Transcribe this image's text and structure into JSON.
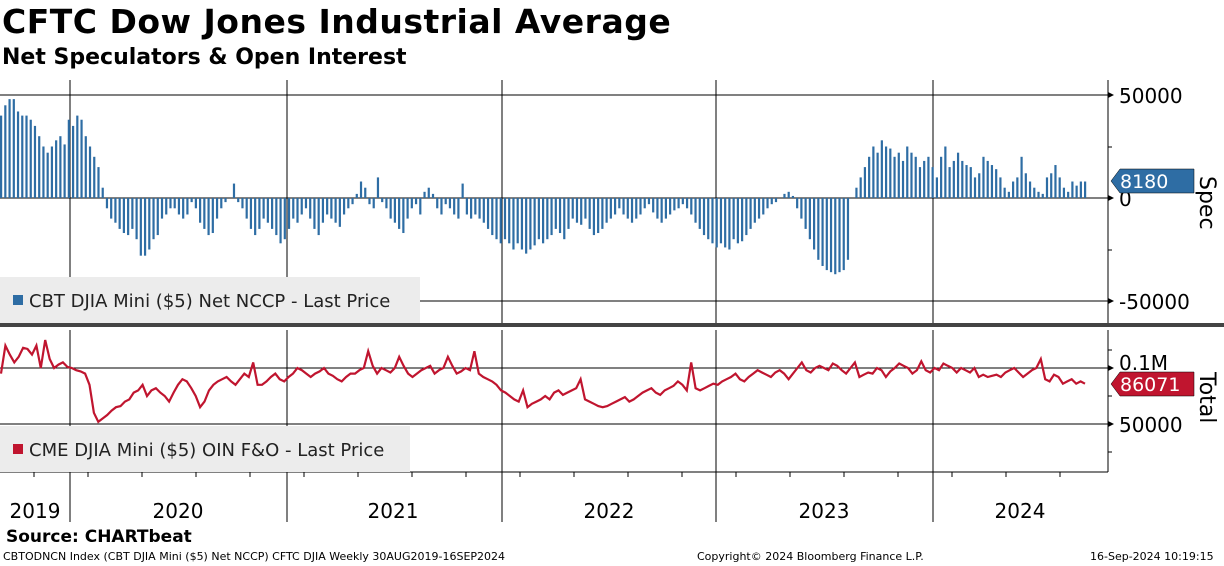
{
  "header": {
    "title": "CFTC Dow Jones Industrial Average",
    "subtitle": "Net Speculators & Open Interest"
  },
  "footer": {
    "source": "Source: CHARTbeat",
    "index": "CBTODNCN Index (CBT DJIA Mini ($5) Net NCCP) CFTC DJIA  Weekly 30AUG2019-16SEP2024",
    "copyright": "Copyright© 2024 Bloomberg Finance L.P.",
    "timestamp": "16-Sep-2024 10:19:15"
  },
  "colors": {
    "spec": "#2e6da4",
    "total": "#c0152f"
  },
  "chart_data": [
    {
      "type": "bar",
      "title": "Spec",
      "legend": "CBT DJIA Mini ($5) Net NCCP - Last Price",
      "ylim": [
        -60000,
        55000
      ],
      "yticks": [
        "50000",
        "0",
        "-50000"
      ],
      "last_value": "8180",
      "x_start": "2019-08-30",
      "x_end": "2024-09-16",
      "frequency": "weekly",
      "unit": "thousands",
      "values": [
        40,
        45,
        48,
        48,
        42,
        40,
        40,
        38,
        35,
        30,
        25,
        22,
        25,
        28,
        30,
        26,
        38,
        35,
        40,
        38,
        30,
        25,
        20,
        15,
        5,
        -5,
        -10,
        -12,
        -15,
        -17,
        -18,
        -15,
        -20,
        -28,
        -28,
        -25,
        -20,
        -18,
        -10,
        -8,
        -5,
        -5,
        -8,
        -10,
        -8,
        -2,
        -5,
        -12,
        -15,
        -18,
        -17,
        -10,
        -5,
        -2,
        0,
        7,
        -2,
        -5,
        -10,
        -15,
        -18,
        -15,
        -10,
        -12,
        -15,
        -18,
        -22,
        -20,
        -15,
        -10,
        -12,
        -8,
        -5,
        -10,
        -15,
        -18,
        -12,
        -8,
        -10,
        -12,
        -14,
        -8,
        -5,
        -3,
        2,
        8,
        5,
        -3,
        -5,
        10,
        -2,
        -5,
        -10,
        -12,
        -15,
        -17,
        -10,
        -5,
        -3,
        -8,
        3,
        5,
        2,
        -5,
        -8,
        -3,
        -5,
        -8,
        -10,
        7,
        -8,
        -10,
        -8,
        -10,
        -12,
        -15,
        -18,
        -20,
        -22,
        -20,
        -22,
        -25,
        -22,
        -25,
        -27,
        -25,
        -23,
        -20,
        -22,
        -20,
        -18,
        -15,
        -17,
        -20,
        -15,
        -10,
        -12,
        -13,
        -10,
        -15,
        -18,
        -17,
        -15,
        -12,
        -10,
        -8,
        -5,
        -8,
        -10,
        -12,
        -10,
        -8,
        -5,
        -3,
        -7,
        -10,
        -12,
        -10,
        -8,
        -6,
        -5,
        -3,
        -5,
        -8,
        -12,
        -15,
        -18,
        -20,
        -22,
        -24,
        -22,
        -24,
        -25,
        -20,
        -22,
        -21,
        -18,
        -15,
        -12,
        -10,
        -8,
        -5,
        -3,
        -2,
        0,
        2,
        3,
        1,
        -5,
        -10,
        -15,
        -20,
        -25,
        -30,
        -33,
        -35,
        -36,
        -37,
        -36,
        -35,
        -30,
        0,
        5,
        10,
        15,
        20,
        25,
        22,
        28,
        25,
        24,
        20,
        22,
        18,
        25,
        22,
        20,
        15,
        18,
        20,
        15,
        10,
        20,
        25,
        15,
        18,
        22,
        18,
        16,
        15,
        10,
        12,
        20,
        18,
        16,
        14,
        10,
        5,
        3,
        8,
        10,
        20,
        12,
        8,
        5,
        3,
        2,
        10,
        12,
        16,
        10,
        5,
        3,
        8,
        6,
        8,
        8
      ]
    },
    {
      "type": "line",
      "title": "Total",
      "legend": "CME DJIA Mini ($5) OIN F&O - Last Price",
      "ylim": [
        15000,
        125000
      ],
      "yticks": [
        "0.1M",
        "50000"
      ],
      "last_value": "86071",
      "x_start": "2019-08-30",
      "x_end": "2024-09-16",
      "frequency": "weekly",
      "unit": "thousands",
      "values": [
        95,
        120,
        112,
        105,
        110,
        118,
        117,
        112,
        120,
        100,
        125,
        108,
        100,
        103,
        105,
        101,
        100,
        98,
        97,
        95,
        85,
        60,
        52,
        55,
        58,
        62,
        65,
        66,
        70,
        72,
        78,
        80,
        85,
        75,
        80,
        82,
        78,
        75,
        70,
        78,
        85,
        90,
        88,
        82,
        75,
        65,
        70,
        80,
        85,
        88,
        90,
        92,
        88,
        85,
        90,
        95,
        92,
        105,
        85,
        85,
        88,
        92,
        95,
        90,
        88,
        92,
        95,
        100,
        98,
        95,
        92,
        95,
        97,
        100,
        95,
        93,
        90,
        88,
        92,
        95,
        95,
        98,
        100,
        115,
        102,
        95,
        100,
        98,
        96,
        100,
        110,
        102,
        95,
        92,
        95,
        98,
        100,
        102,
        95,
        98,
        100,
        110,
        102,
        95,
        97,
        100,
        98,
        115,
        95,
        92,
        90,
        88,
        85,
        80,
        78,
        75,
        72,
        70,
        80,
        65,
        68,
        70,
        72,
        75,
        72,
        78,
        80,
        76,
        78,
        80,
        82,
        90,
        72,
        70,
        68,
        66,
        65,
        66,
        68,
        70,
        72,
        74,
        70,
        72,
        75,
        78,
        80,
        82,
        78,
        76,
        80,
        82,
        84,
        88,
        85,
        80,
        105,
        82,
        80,
        82,
        84,
        86,
        85,
        88,
        90,
        92,
        95,
        90,
        88,
        92,
        95,
        98,
        96,
        94,
        92,
        96,
        98,
        95,
        90,
        95,
        100,
        105,
        98,
        96,
        100,
        102,
        100,
        98,
        104,
        102,
        98,
        95,
        100,
        105,
        92,
        94,
        96,
        95,
        100,
        98,
        92,
        97,
        100,
        104,
        102,
        100,
        95,
        98,
        106,
        98,
        96,
        100,
        98,
        104,
        102,
        100,
        96,
        100,
        98,
        96,
        100,
        92,
        94,
        92,
        93,
        94,
        92,
        96,
        98,
        100,
        96,
        92,
        95,
        98,
        100,
        108,
        90,
        88,
        94,
        92,
        86,
        88,
        90,
        86,
        88,
        86
      ]
    }
  ],
  "axis": {
    "years": [
      "2019",
      "2020",
      "2021",
      "2022",
      "2023",
      "2024"
    ]
  }
}
